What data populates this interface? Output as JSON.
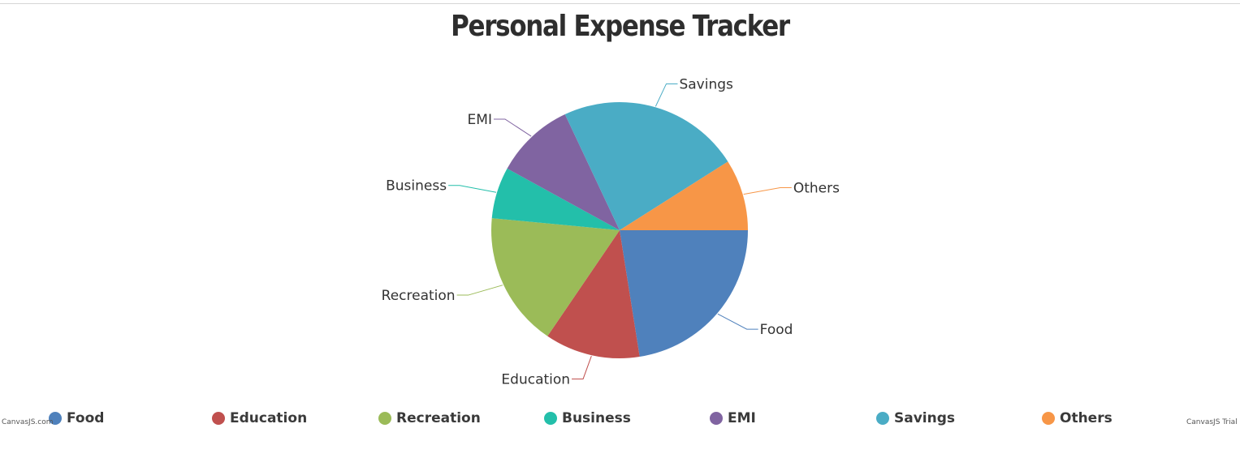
{
  "chart_data": {
    "type": "pie",
    "title": "Personal Expense Tracker",
    "categories": [
      "Food",
      "Education",
      "Recreation",
      "Business",
      "EMI",
      "Savings",
      "Others"
    ],
    "values": [
      22.5,
      12,
      17,
      6.5,
      10,
      23,
      9
    ],
    "colors": [
      "#4F81BC",
      "#C0504E",
      "#9BBB58",
      "#23BFAA",
      "#8064A1",
      "#4AACC5",
      "#F79647"
    ],
    "start_angle_deg": 0,
    "legend": "bottom"
  },
  "credits": {
    "left": "CanvasJS.com",
    "right": "CanvasJS Trial"
  }
}
